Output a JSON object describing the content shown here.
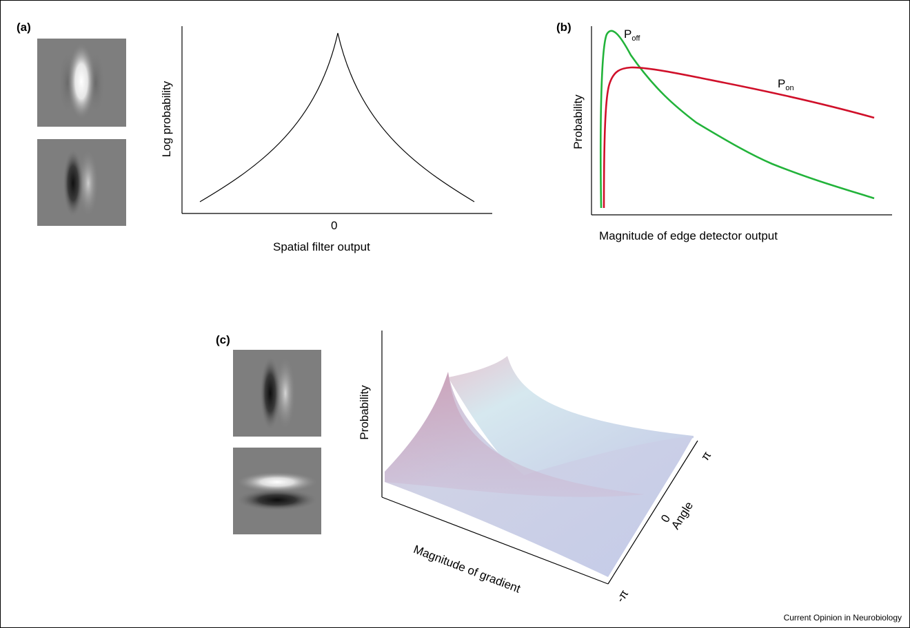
{
  "panel_a": {
    "label": "(a)",
    "xlabel": "Spatial filter output",
    "ylabel": "Log probability",
    "xtick": "0"
  },
  "panel_b": {
    "label": "(b)",
    "xlabel": "Magnitude of edge detector output",
    "ylabel": "Probability",
    "p_off_main": "P",
    "p_off_sub": "off",
    "p_on_main": "P",
    "p_on_sub": "on",
    "colors": {
      "off": "#22b33a",
      "on": "#d0102a"
    }
  },
  "panel_c": {
    "label": "(c)",
    "zlabel": "Probability",
    "xlabel": "Magnitude of gradient",
    "ylabel": "Angle",
    "tick_pi": "π",
    "tick_zero": "0",
    "tick_neg_pi": "-π"
  },
  "credit": "Current Opinion in Neurobiology"
}
